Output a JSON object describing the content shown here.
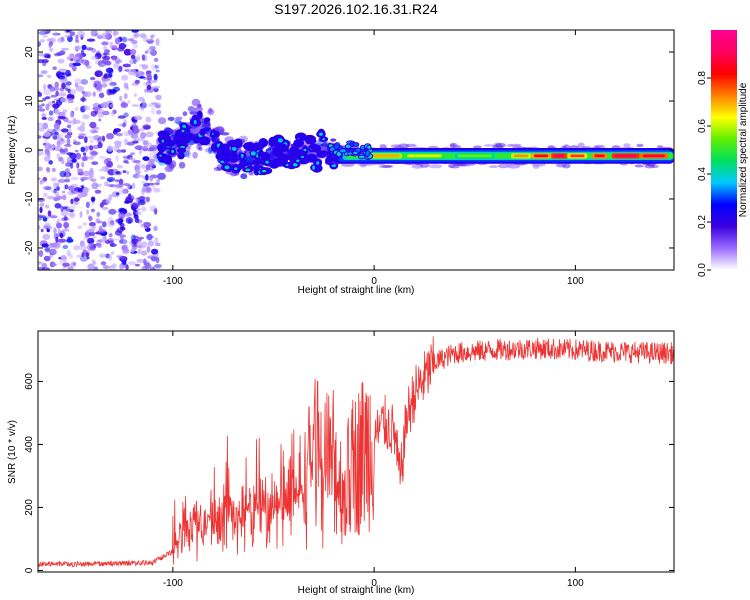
{
  "title": "S197.2026.102.16.31.R24",
  "chart_data": [
    {
      "type": "heatmap",
      "name": "spectrogram",
      "xlabel": "Height of straight line (km)",
      "ylabel": "Frequency (Hz)",
      "xlim": [
        -167,
        149
      ],
      "ylim": [
        -24.5,
        24.5
      ],
      "x_ticks": [
        -100,
        0,
        100
      ],
      "y_ticks": [
        -20,
        -10,
        0,
        10,
        20
      ],
      "colorbar": {
        "label": "Normalized spectral amplitude",
        "range": [
          0,
          1
        ],
        "ticks": [
          0.0,
          0.2,
          0.4,
          0.6,
          0.8
        ],
        "colors": [
          "#ffffff",
          "#9a6bff",
          "#3b00e0",
          "#0000ff",
          "#00c8ff",
          "#00e060",
          "#60f000",
          "#ffff00",
          "#ff8000",
          "#ff0000",
          "#ff0060",
          "#ff0090"
        ]
      },
      "regions": [
        {
          "x": [
            -167,
            -107
          ],
          "description": "scattered noise",
          "amplitude": [
            0.05,
            0.2
          ]
        },
        {
          "x": [
            -107,
            -20
          ],
          "description": "wandering signal",
          "amplitude": [
            0.15,
            0.45
          ]
        },
        {
          "x": [
            -20,
            149
          ],
          "description": "stable line near 0 Hz",
          "frequency": -1.2,
          "amplitude": [
            0.5,
            0.95
          ]
        }
      ]
    },
    {
      "type": "line",
      "name": "snr",
      "xlabel": "Height of straight line (km)",
      "ylabel": "SNR (10 * v/v)",
      "xlim": [
        -167,
        149
      ],
      "ylim": [
        -5,
        760
      ],
      "x_ticks": [
        -100,
        0,
        100
      ],
      "y_ticks": [
        0,
        200,
        400,
        600
      ],
      "color": "#ee3333",
      "series": [
        {
          "name": "SNR",
          "x": [
            -167,
            -150,
            -130,
            -110,
            -100,
            -95,
            -90,
            -80,
            -70,
            -60,
            -50,
            -40,
            -35,
            -30,
            -25,
            -20,
            -15,
            -10,
            -5,
            0,
            5,
            10,
            13,
            16,
            20,
            25,
            30,
            40,
            60,
            80,
            100,
            120,
            140,
            149
          ],
          "values": [
            20,
            20,
            22,
            25,
            60,
            120,
            140,
            160,
            175,
            185,
            190,
            210,
            280,
            400,
            300,
            340,
            240,
            330,
            380,
            420,
            470,
            440,
            280,
            480,
            560,
            610,
            660,
            690,
            700,
            705,
            700,
            695,
            690,
            690
          ]
        }
      ]
    }
  ]
}
